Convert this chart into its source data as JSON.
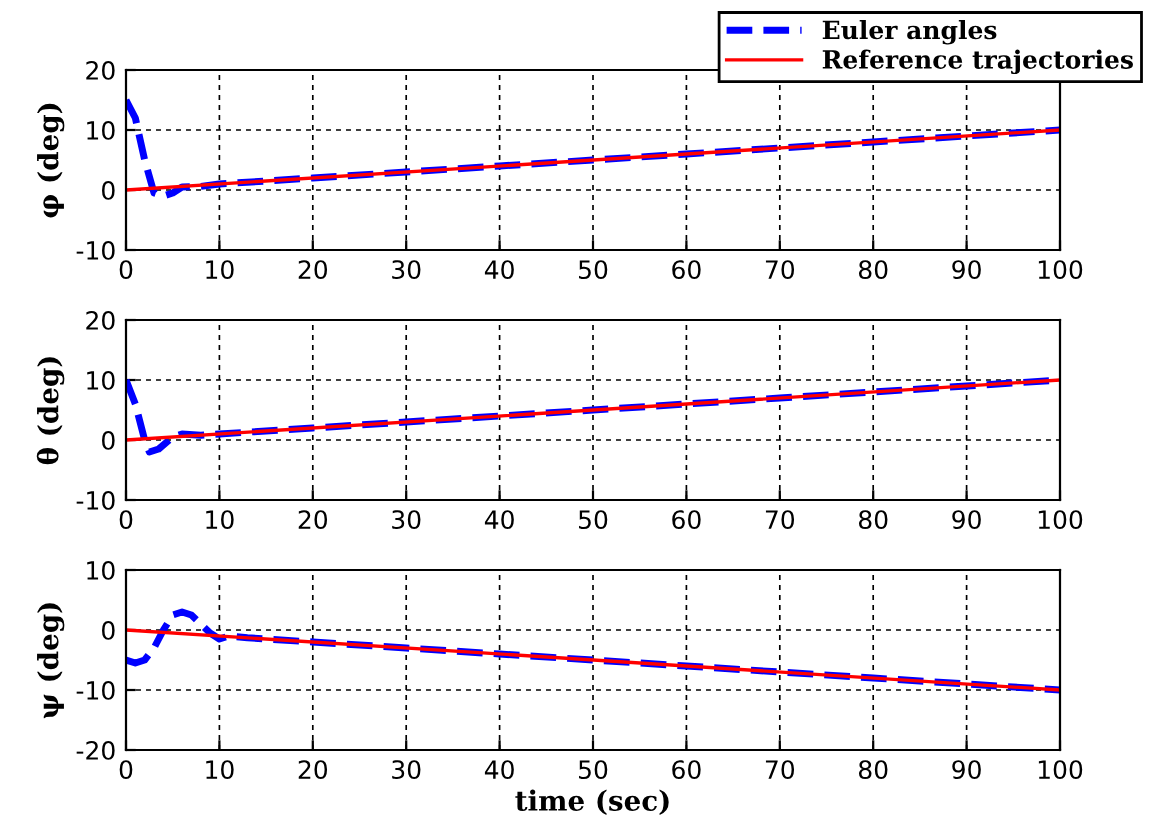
{
  "chart_data": [
    {
      "type": "line",
      "ylabel": "φ (deg)",
      "xlim": [
        0,
        100
      ],
      "xticks": [
        0,
        10,
        20,
        30,
        40,
        50,
        60,
        70,
        80,
        90,
        100
      ],
      "ylim": [
        -10,
        20
      ],
      "yticks": [
        -10,
        0,
        10,
        20
      ],
      "grid": true,
      "legend": "top right",
      "series": [
        {
          "name": "Euler angles",
          "color": "#0000ff",
          "line_style": "dashed",
          "x": [
            0,
            1,
            2,
            3,
            4,
            5,
            6,
            8,
            10,
            20,
            30,
            40,
            50,
            60,
            70,
            80,
            90,
            100
          ],
          "values": [
            15,
            12,
            5,
            -0.5,
            -1,
            -0.5,
            0.5,
            0.6,
            1,
            2,
            3,
            4,
            5,
            6,
            7,
            8,
            9,
            10
          ]
        },
        {
          "name": "Reference trajectories",
          "color": "#ff0000",
          "line_style": "solid",
          "x": [
            0,
            100
          ],
          "values": [
            0,
            10
          ]
        }
      ]
    },
    {
      "type": "line",
      "ylabel": "θ (deg)",
      "xlim": [
        0,
        100
      ],
      "xticks": [
        0,
        10,
        20,
        30,
        40,
        50,
        60,
        70,
        80,
        90,
        100
      ],
      "ylim": [
        -10,
        20
      ],
      "yticks": [
        -10,
        0,
        10,
        20
      ],
      "grid": true,
      "series": [
        {
          "color": "#0000ff",
          "line_style": "dashed",
          "x": [
            0,
            1,
            2,
            2.5,
            3.5,
            5,
            6,
            8,
            10,
            20,
            30,
            40,
            50,
            60,
            70,
            80,
            90,
            100
          ],
          "values": [
            10,
            6,
            0,
            -2,
            -1.5,
            0.5,
            1,
            0.8,
            1,
            2,
            3,
            4,
            5,
            6,
            7,
            8,
            9,
            10
          ]
        },
        {
          "color": "#ff0000",
          "line_style": "solid",
          "x": [
            0,
            100
          ],
          "values": [
            0,
            10
          ]
        }
      ]
    },
    {
      "type": "line",
      "ylabel": "ψ (deg)",
      "xlabel": "time (sec)",
      "xlim": [
        0,
        100
      ],
      "xticks": [
        0,
        10,
        20,
        30,
        40,
        50,
        60,
        70,
        80,
        90,
        100
      ],
      "ylim": [
        -20,
        10
      ],
      "yticks": [
        -20,
        -10,
        0,
        10
      ],
      "grid": true,
      "series": [
        {
          "color": "#0000ff",
          "line_style": "dashed",
          "x": [
            0,
            1,
            2,
            3,
            4,
            5,
            6,
            7,
            8,
            9,
            10,
            11,
            13,
            15,
            20,
            30,
            40,
            50,
            60,
            70,
            80,
            90,
            100
          ],
          "values": [
            -5,
            -5.5,
            -5,
            -3,
            0,
            2.5,
            3,
            2.5,
            1,
            -0.5,
            -1.5,
            -1,
            -1.3,
            -1.5,
            -2,
            -3,
            -4,
            -5,
            -6,
            -7,
            -8,
            -9,
            -10
          ]
        },
        {
          "color": "#ff0000",
          "line_style": "solid",
          "x": [
            0,
            100
          ],
          "values": [
            0,
            -10
          ]
        }
      ]
    }
  ]
}
